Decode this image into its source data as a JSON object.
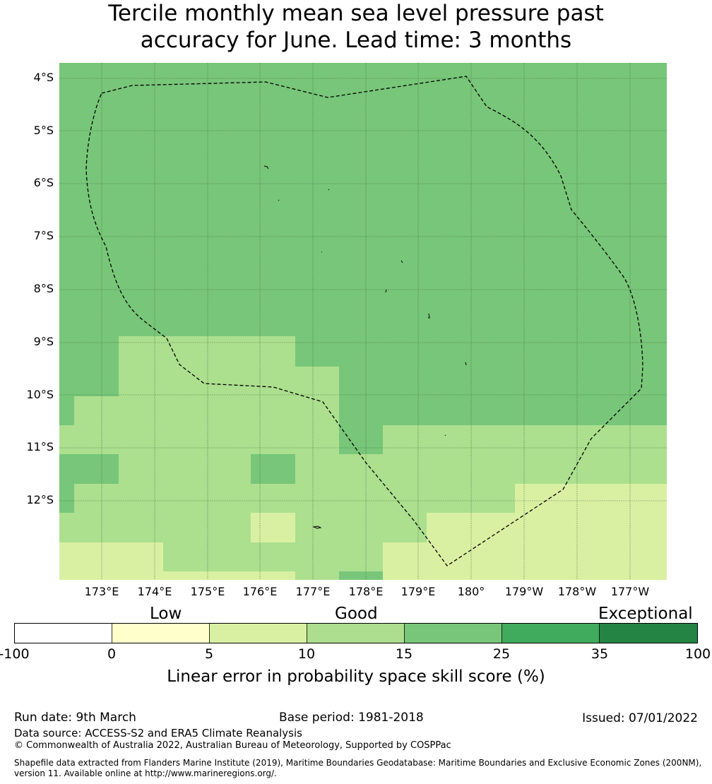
{
  "title": {
    "line1": "Tercile monthly mean sea level pressure past",
    "line2": "accuracy for June. Lead time: 3 months"
  },
  "map": {
    "lat_labels": [
      "4°S",
      "5°S",
      "6°S",
      "7°S",
      "8°S",
      "9°S",
      "10°S",
      "11°S",
      "12°S"
    ],
    "lon_labels": [
      "173°E",
      "174°E",
      "175°E",
      "176°E",
      "177°E",
      "178°E",
      "179°E",
      "180°",
      "179°W",
      "178°W",
      "177°W"
    ],
    "lon_range": [
      172.2,
      183.7
    ],
    "lat_range": [
      -3.7,
      -13.5
    ],
    "grid": true,
    "eez_boundary": "dashed",
    "colors": {
      "cat_10_15": "#acdf8e",
      "cat_15_25": "#78c679",
      "cat_5_10": "#d9f0a3",
      "grid": "#3d6b3d",
      "eez": "#000000"
    }
  },
  "colorbar": {
    "categories": [
      "Low",
      "Good",
      "Exceptional"
    ],
    "ticks": [
      "-100",
      "0",
      "5",
      "10",
      "15",
      "25",
      "35",
      "100"
    ],
    "colors": [
      "#ffffff",
      "#ffffcc",
      "#d9f0a3",
      "#addd8e",
      "#78c679",
      "#41ab5d",
      "#238443"
    ],
    "label": "Linear error in probability space skill score (%)"
  },
  "footer": {
    "run_date": "Run date: 9th March",
    "base_period": "Base period: 1981-2018",
    "issued": "Issued: 07/01/2022",
    "data_source": "Data source: ACCESS-S2 and ERA5 Climate Reanalysis",
    "copyright": "© Commonwealth of Australia 2022, Australian Bureau of Meteorology, Supported by COSPPac",
    "shapefile_line1": "Shapefile data extracted from Flanders Marine Institute (2019), Maritime Boundaries Geodatabase: Maritime Boundaries and Exclusive Economic Zones (200NM),",
    "shapefile_line2": "version 11. Available online at http://www.marineregions.org/."
  }
}
